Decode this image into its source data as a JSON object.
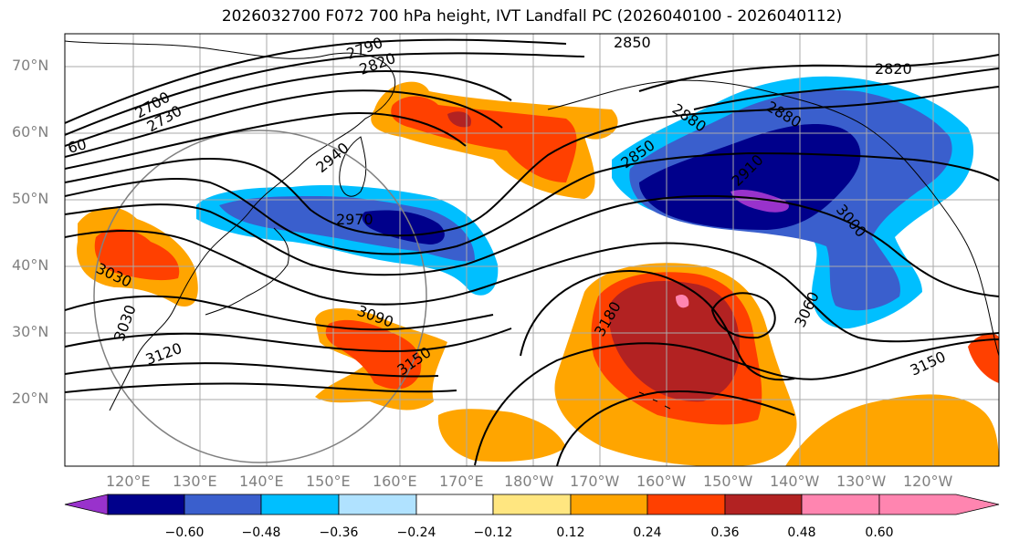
{
  "title": "2026032700 F072 700 hPa height, IVT Landfall PC (2026040100 - 2026040112)",
  "lat_labels": [
    "70°N",
    "60°N",
    "50°N",
    "40°N",
    "30°N",
    "20°N"
  ],
  "lon_labels": [
    "120°E",
    "130°E",
    "140°E",
    "150°E",
    "160°E",
    "170°E",
    "180°W",
    "170°W",
    "160°W",
    "150°W",
    "140°W",
    "130°W",
    "120°W"
  ],
  "contour_labels": [
    "2790",
    "2850",
    "2820",
    "2700",
    "2730",
    "2820",
    "60",
    "2880",
    "2880",
    "2940",
    "2850",
    "2910",
    "2970",
    "3000",
    "3030",
    "3090",
    "3180",
    "3060",
    "3030",
    "3120",
    "3150",
    "3150"
  ],
  "colorbar": {
    "ticks": [
      "−0.60",
      "−0.48",
      "−0.36",
      "−0.24",
      "−0.12",
      "0.12",
      "0.24",
      "0.36",
      "0.48",
      "0.60"
    ],
    "colors": [
      "#9932cc",
      "#00008b",
      "#3a5fcd",
      "#00bfff",
      "#b0e2ff",
      "#ffffff",
      "#ffe680",
      "#ffa500",
      "#ff4000",
      "#b22222",
      "#ff85b0"
    ]
  }
}
